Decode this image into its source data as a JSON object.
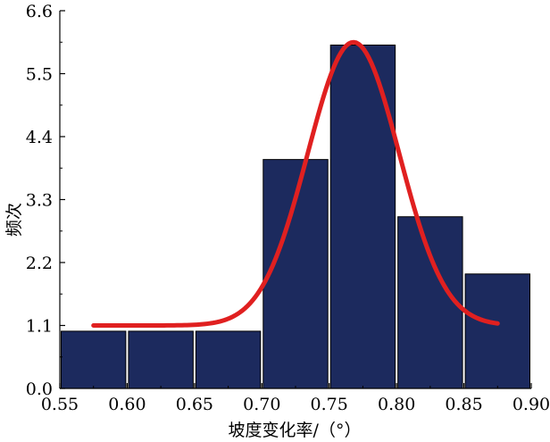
{
  "chart_data": {
    "type": "bar",
    "xlabel": "坡度变化率/（°）",
    "ylabel": "频次",
    "xlim": [
      0.55,
      0.9
    ],
    "ylim": [
      0.0,
      6.6
    ],
    "x_ticks": [
      "0.55",
      "0.60",
      "0.65",
      "0.70",
      "0.75",
      "0.80",
      "0.85",
      "0.90"
    ],
    "y_ticks": [
      "0.0",
      "1.1",
      "2.2",
      "3.3",
      "4.4",
      "5.5",
      "6.6"
    ],
    "bins": [
      {
        "start": 0.55,
        "end": 0.6,
        "value": 1
      },
      {
        "start": 0.6,
        "end": 0.65,
        "value": 1
      },
      {
        "start": 0.65,
        "end": 0.7,
        "value": 1
      },
      {
        "start": 0.7,
        "end": 0.75,
        "value": 4
      },
      {
        "start": 0.75,
        "end": 0.8,
        "value": 6
      },
      {
        "start": 0.8,
        "end": 0.85,
        "value": 3
      },
      {
        "start": 0.85,
        "end": 0.9,
        "value": 2
      }
    ],
    "fit_curve": {
      "type": "gaussian",
      "baseline": 1.1,
      "amplitude": 4.95,
      "center": 0.768,
      "sigma": 0.034,
      "x_range": [
        0.575,
        0.875
      ]
    },
    "colors": {
      "bar_fill": "#1c2a5e",
      "bar_edge": "#000000",
      "curve": "#e02020"
    },
    "grid": false,
    "legend": "none"
  }
}
